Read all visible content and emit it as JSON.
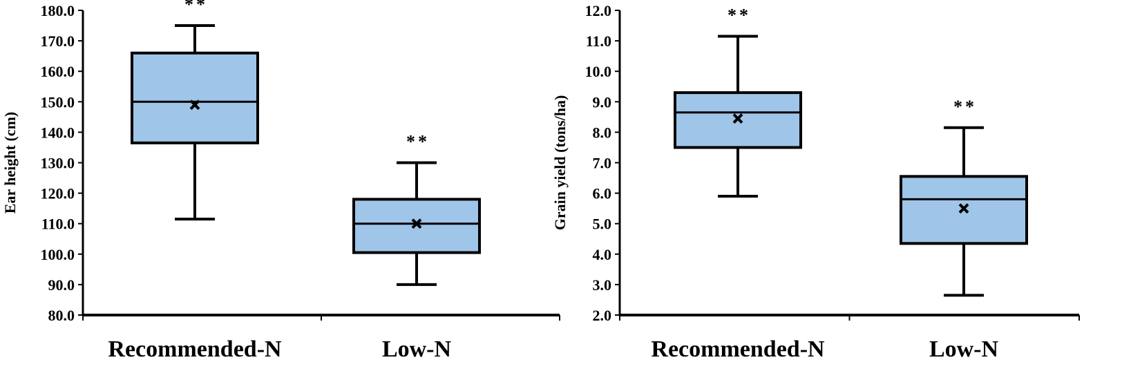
{
  "chart_data": [
    {
      "type": "box",
      "ylabel": "Ear height (cm)",
      "xlabel": "",
      "ylim": [
        80,
        180
      ],
      "yticks": [
        80,
        90,
        100,
        110,
        120,
        130,
        140,
        150,
        160,
        170,
        180
      ],
      "tick_decimals": 1,
      "box_color": "#9fc5e8",
      "categories": [
        "Recommended-N",
        "Low-N"
      ],
      "boxes": [
        {
          "category": "Recommended-N",
          "whisker_low": 111.5,
          "q1": 136.5,
          "median": 150.0,
          "q3": 166.0,
          "whisker_high": 175.0,
          "mean": 149.0,
          "significance": "**"
        },
        {
          "category": "Low-N",
          "whisker_low": 90.0,
          "q1": 100.5,
          "median": 110.0,
          "q3": 118.0,
          "whisker_high": 130.0,
          "mean": 110.0,
          "significance": "**"
        }
      ]
    },
    {
      "type": "box",
      "ylabel": "Grain yield (tons/ha)",
      "xlabel": "",
      "ylim": [
        2,
        12
      ],
      "yticks": [
        2,
        3,
        4,
        5,
        6,
        7,
        8,
        9,
        10,
        11,
        12
      ],
      "tick_decimals": 1,
      "box_color": "#9fc5e8",
      "categories": [
        "Recommended-N",
        "Low-N"
      ],
      "boxes": [
        {
          "category": "Recommended-N",
          "whisker_low": 5.9,
          "q1": 7.5,
          "median": 8.65,
          "q3": 9.3,
          "whisker_high": 11.15,
          "mean": 8.45,
          "significance": "**"
        },
        {
          "category": "Low-N",
          "whisker_low": 2.65,
          "q1": 4.35,
          "median": 5.8,
          "q3": 6.55,
          "whisker_high": 8.15,
          "mean": 5.5,
          "significance": "**"
        }
      ]
    }
  ]
}
